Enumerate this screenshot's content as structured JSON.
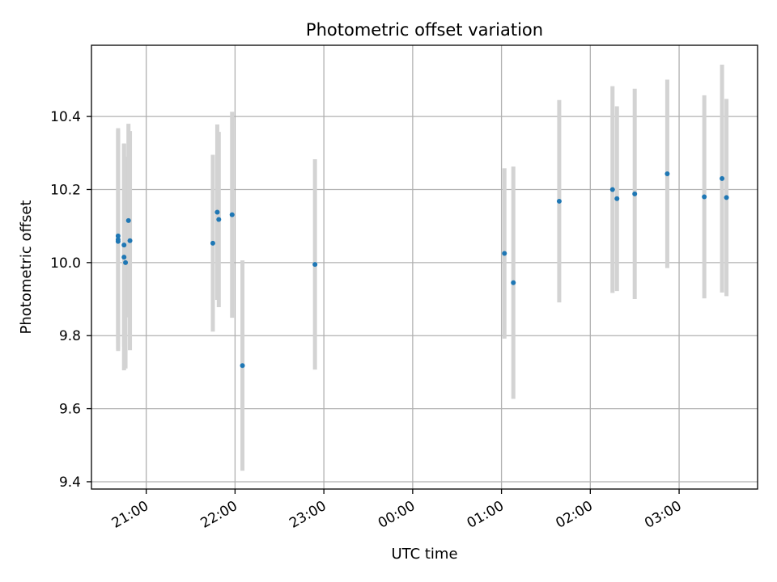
{
  "chart_data": {
    "type": "scatter",
    "title": "Photometric offset variation",
    "xlabel": "UTC time",
    "ylabel": "Photometric offset",
    "x_axis_kind": "time",
    "x_ticks": [
      "21:00",
      "22:00",
      "23:00",
      "00:00",
      "01:00",
      "02:00",
      "03:00"
    ],
    "y_ticks": [
      "9.4",
      "9.6",
      "9.8",
      "10.0",
      "10.2",
      "10.4"
    ],
    "xlim": [
      "20:23",
      "03:53"
    ],
    "ylim": [
      9.38,
      10.595
    ],
    "grid": true,
    "point_color": "#1f77b4",
    "errorbar_color": "#d3d3d3",
    "frame_color": "#000000",
    "grid_color": "#b0b0b0",
    "series": [
      {
        "points": [
          {
            "time": "20:41",
            "y": 10.073,
            "yerr": 0.295
          },
          {
            "time": "20:41",
            "y": 10.058,
            "yerr": 0.3
          },
          {
            "time": "20:41",
            "y": 10.063,
            "yerr": 0.3
          },
          {
            "time": "20:45",
            "y": 10.048,
            "yerr": 0.278
          },
          {
            "time": "20:45",
            "y": 10.015,
            "yerr": 0.31
          },
          {
            "time": "20:46",
            "y": 10.0,
            "yerr": 0.29
          },
          {
            "time": "20:48",
            "y": 10.115,
            "yerr": 0.265
          },
          {
            "time": "20:49",
            "y": 10.06,
            "yerr": 0.3
          },
          {
            "time": "21:45",
            "y": 10.053,
            "yerr": 0.242
          },
          {
            "time": "21:48",
            "y": 10.138,
            "yerr": 0.24
          },
          {
            "time": "21:49",
            "y": 10.118,
            "yerr": 0.24
          },
          {
            "time": "21:58",
            "y": 10.131,
            "yerr": 0.282
          },
          {
            "time": "22:05",
            "y": 9.718,
            "yerr": 0.288
          },
          {
            "time": "22:54",
            "y": 9.995,
            "yerr": 0.288
          },
          {
            "time": "01:02",
            "y": 10.025,
            "yerr": 0.233
          },
          {
            "time": "01:08",
            "y": 9.945,
            "yerr": 0.318
          },
          {
            "time": "01:39",
            "y": 10.168,
            "yerr": 0.277
          },
          {
            "time": "02:15",
            "y": 10.2,
            "yerr": 0.283
          },
          {
            "time": "02:18",
            "y": 10.175,
            "yerr": 0.253
          },
          {
            "time": "02:30",
            "y": 10.188,
            "yerr": 0.288
          },
          {
            "time": "02:52",
            "y": 10.243,
            "yerr": 0.258
          },
          {
            "time": "03:17",
            "y": 10.18,
            "yerr": 0.278
          },
          {
            "time": "03:29",
            "y": 10.23,
            "yerr": 0.312
          },
          {
            "time": "03:32",
            "y": 10.178,
            "yerr": 0.27
          }
        ]
      }
    ]
  }
}
